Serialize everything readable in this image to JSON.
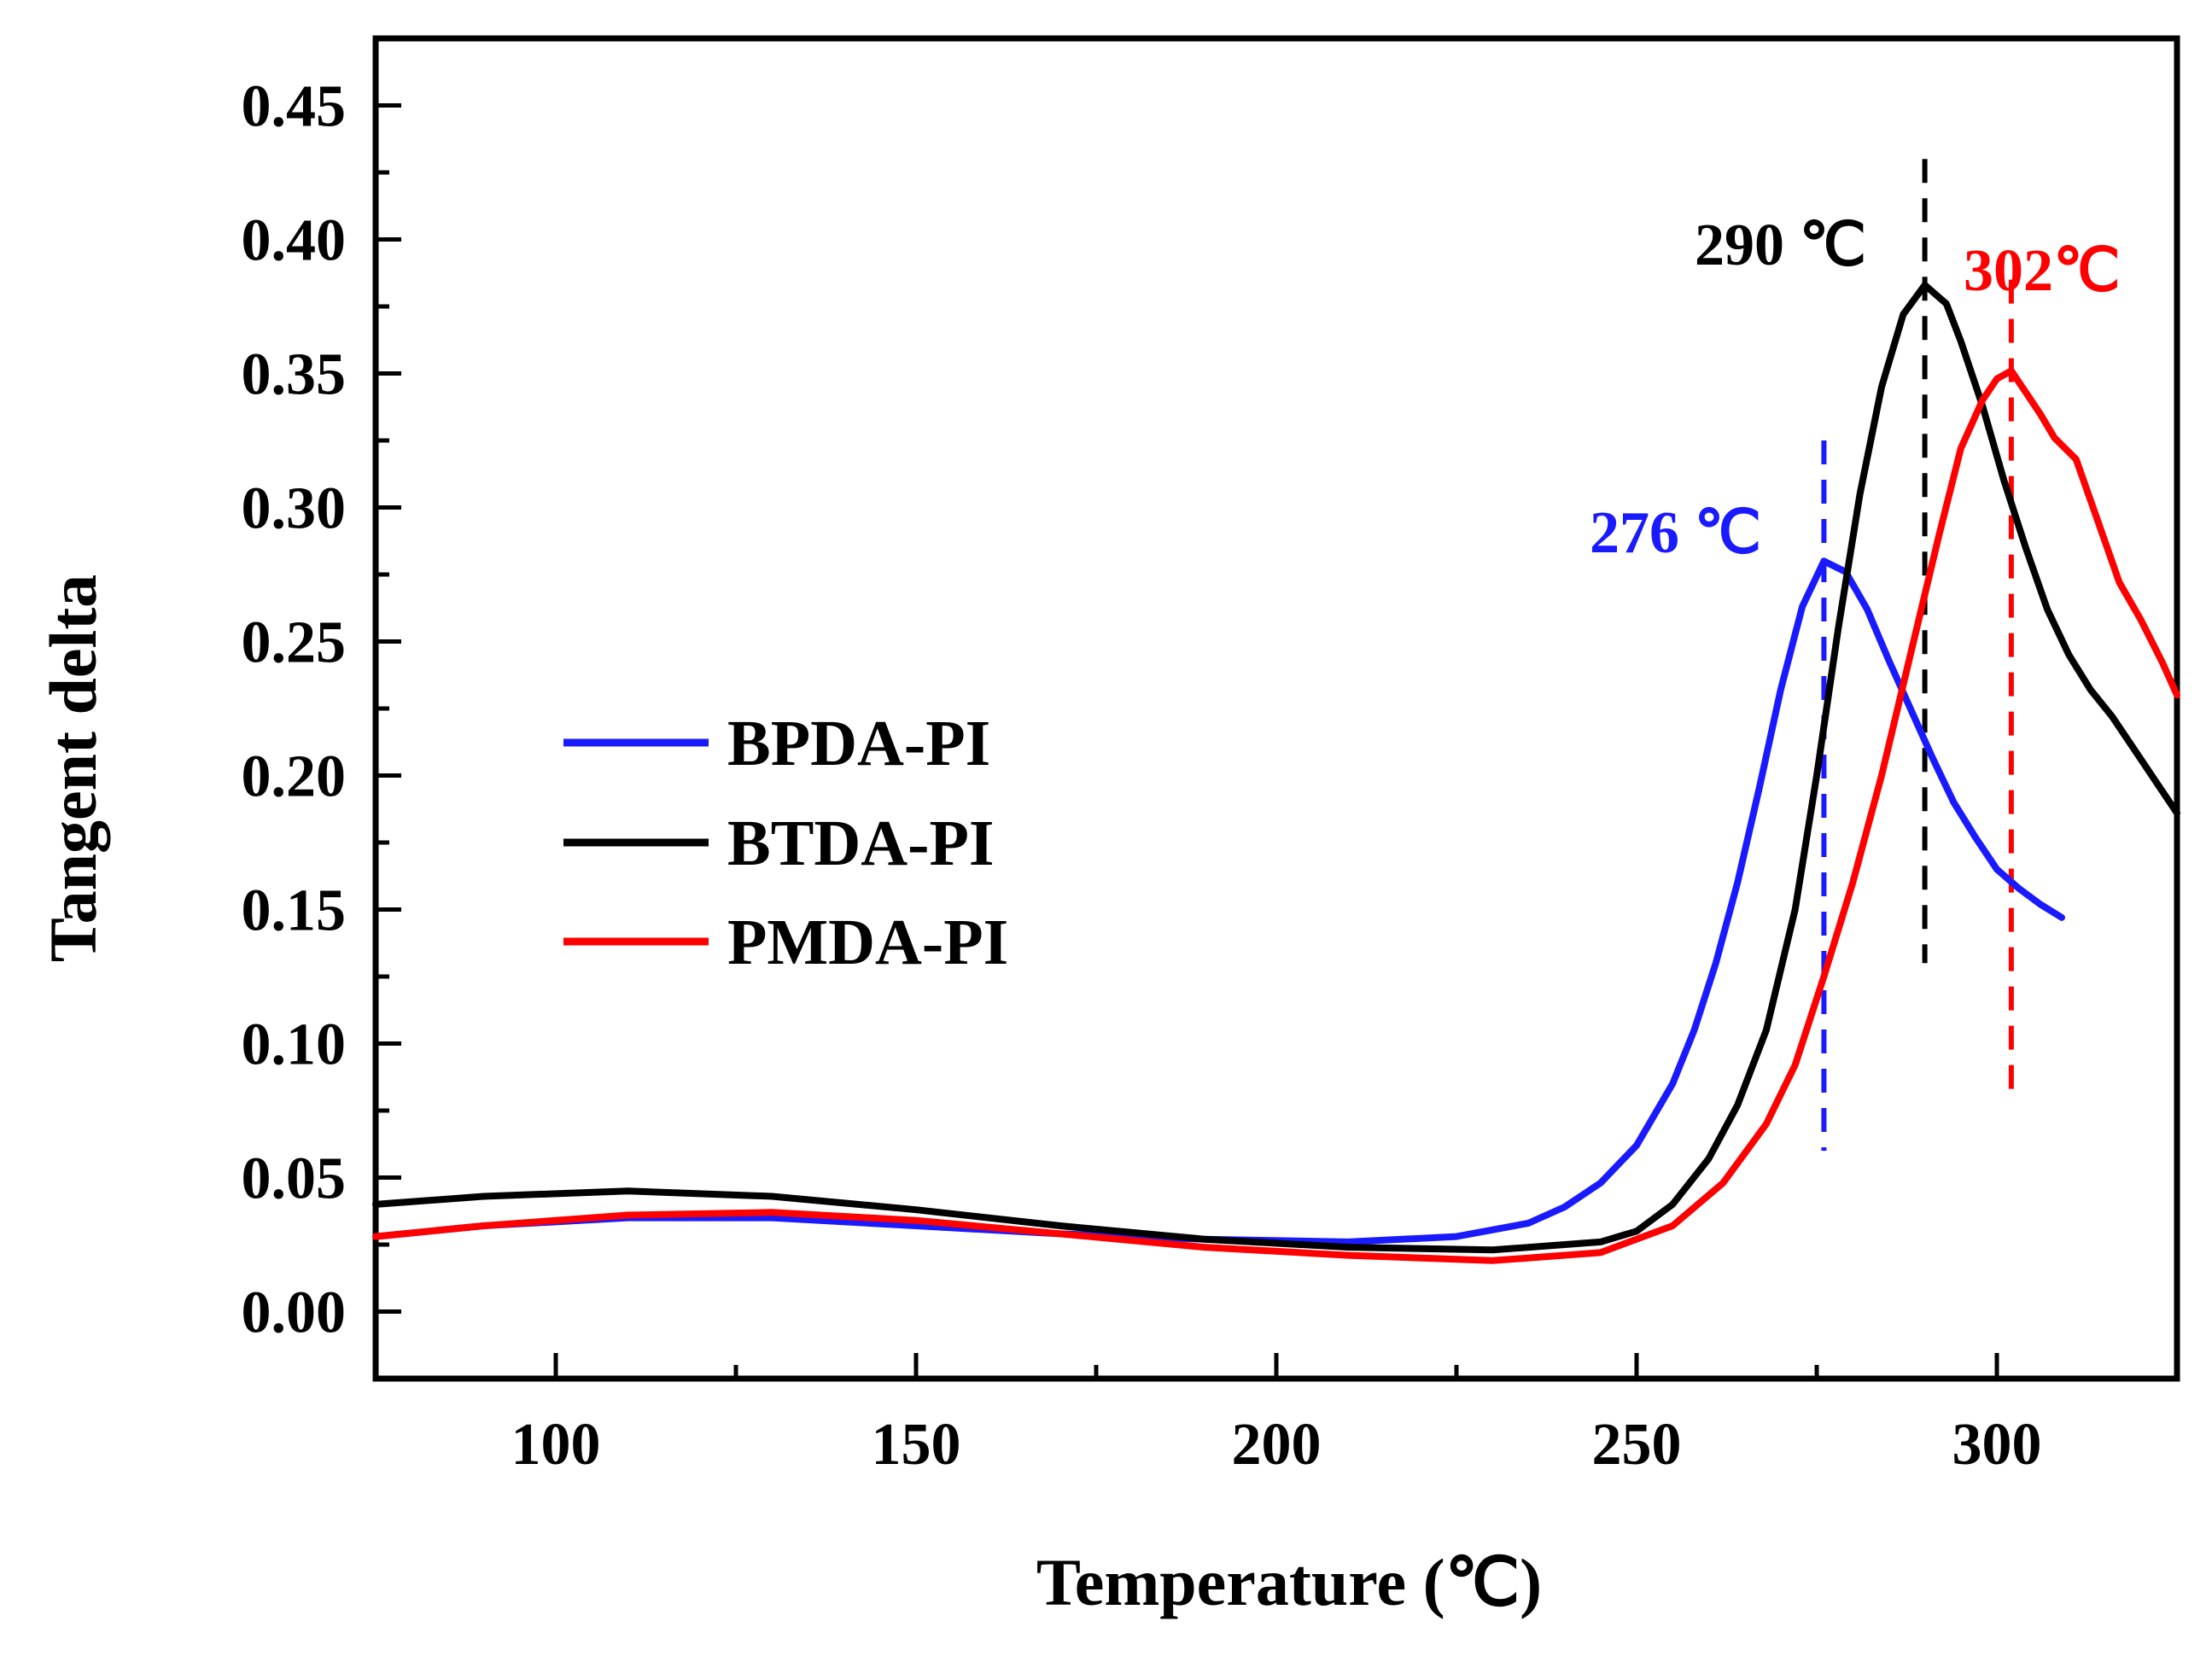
{
  "chart_data": {
    "type": "line",
    "title": "",
    "xlabel": "Temperature (℃)",
    "ylabel": "Tangent delta",
    "xlim": [
      75,
      325
    ],
    "ylim": [
      -0.025,
      0.475
    ],
    "xticks": [
      100,
      150,
      200,
      250,
      300
    ],
    "xtick_labels": [
      "100",
      "150",
      "200",
      "250",
      "300"
    ],
    "yticks": [
      0.0,
      0.05,
      0.1,
      0.15,
      0.2,
      0.25,
      0.3,
      0.35,
      0.4,
      0.45
    ],
    "ytick_labels": [
      "0.00",
      "0.05",
      "0.10",
      "0.15",
      "0.20",
      "0.25",
      "0.30",
      "0.35",
      "0.40",
      "0.45"
    ],
    "grid": false,
    "legend_position": "center-left",
    "series": [
      {
        "name": "BPDA-PI",
        "color": "#1a1aff",
        "x": [
          75,
          90,
          110,
          130,
          150,
          170,
          190,
          210,
          225,
          235,
          240,
          245,
          250,
          255,
          258,
          261,
          264,
          267,
          270,
          273,
          276,
          279,
          282,
          285,
          288,
          291,
          294,
          297,
          300,
          303,
          306,
          309
        ],
        "y": [
          0.028,
          0.032,
          0.035,
          0.035,
          0.032,
          0.029,
          0.027,
          0.026,
          0.028,
          0.033,
          0.039,
          0.048,
          0.062,
          0.085,
          0.105,
          0.13,
          0.16,
          0.195,
          0.232,
          0.263,
          0.28,
          0.276,
          0.262,
          0.243,
          0.225,
          0.207,
          0.19,
          0.177,
          0.165,
          0.158,
          0.152,
          0.147
        ]
      },
      {
        "name": "BTDA-PI",
        "color": "#000000",
        "x": [
          75,
          90,
          110,
          130,
          150,
          170,
          190,
          210,
          230,
          245,
          250,
          255,
          260,
          264,
          268,
          272,
          275,
          278,
          281,
          284,
          287,
          290,
          293,
          295,
          298,
          301,
          304,
          307,
          310,
          313,
          316,
          319,
          322,
          325
        ],
        "y": [
          0.04,
          0.043,
          0.045,
          0.043,
          0.038,
          0.032,
          0.027,
          0.024,
          0.023,
          0.026,
          0.03,
          0.04,
          0.057,
          0.077,
          0.105,
          0.15,
          0.2,
          0.255,
          0.305,
          0.345,
          0.372,
          0.383,
          0.376,
          0.362,
          0.338,
          0.31,
          0.285,
          0.262,
          0.245,
          0.232,
          0.222,
          0.21,
          0.198,
          0.186
        ]
      },
      {
        "name": "PMDA-PI",
        "color": "#ff0000",
        "x": [
          75,
          90,
          110,
          130,
          150,
          170,
          190,
          210,
          230,
          245,
          255,
          262,
          268,
          272,
          276,
          280,
          284,
          288,
          292,
          295,
          298,
          300,
          302,
          304,
          306,
          308,
          311,
          314,
          317,
          320,
          323,
          325
        ],
        "y": [
          0.028,
          0.032,
          0.036,
          0.037,
          0.034,
          0.029,
          0.024,
          0.021,
          0.019,
          0.022,
          0.032,
          0.048,
          0.07,
          0.092,
          0.125,
          0.16,
          0.2,
          0.245,
          0.29,
          0.322,
          0.34,
          0.348,
          0.351,
          0.343,
          0.335,
          0.326,
          0.318,
          0.295,
          0.272,
          0.258,
          0.242,
          0.23
        ]
      }
    ],
    "annotations": [
      {
        "text": "276 ℃",
        "x": 276,
        "color": "#1a1aff",
        "line_from": 0.06,
        "line_to": 0.325
      },
      {
        "text": "290 ℃",
        "x": 290,
        "color": "#000000",
        "line_from": 0.13,
        "line_to": 0.43
      },
      {
        "text": "302℃",
        "x": 302,
        "color": "#ff0000",
        "line_from": 0.08,
        "line_to": 0.385
      }
    ]
  }
}
